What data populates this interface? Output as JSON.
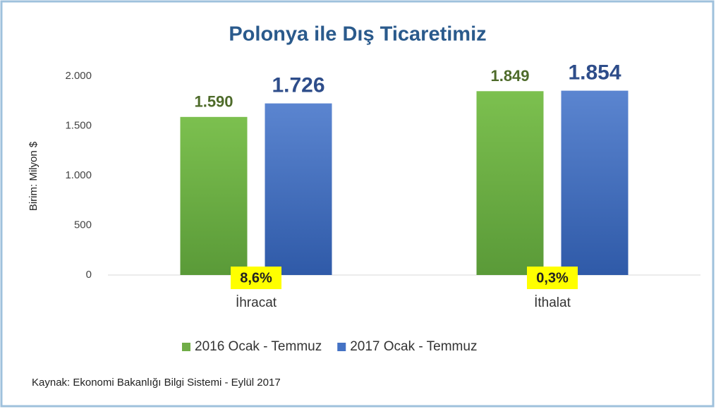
{
  "chart_data": {
    "type": "bar",
    "title": "Polonya ile Dış Ticaretimiz",
    "y_label": "Birim: Milyon $",
    "categories": [
      "İhracat",
      "İthalat"
    ],
    "series": [
      {
        "name": "2016 Ocak - Temmuz",
        "color": "#70ad47",
        "values": [
          1590,
          1849
        ],
        "value_labels": [
          "1.590",
          "1.849"
        ]
      },
      {
        "name": "2017 Ocak - Temmuz",
        "color": "#4472c4",
        "values": [
          1726,
          1854
        ],
        "value_labels": [
          "1.726",
          "1.854"
        ]
      }
    ],
    "annotations": [
      "8,6%",
      "0,3%"
    ],
    "ylim": [
      0,
      2000
    ],
    "yticks": [
      0,
      500,
      {
        "value": 1000,
        "label": "1.000"
      },
      {
        "value": 1500,
        "label": "1.500"
      },
      {
        "value": 2000,
        "label": "2.000"
      }
    ],
    "grid": false,
    "legend": "bottom",
    "source": "Kaynak: Ekonomi Bakanlığı Bilgi Sistemi - Eylül 2017"
  }
}
